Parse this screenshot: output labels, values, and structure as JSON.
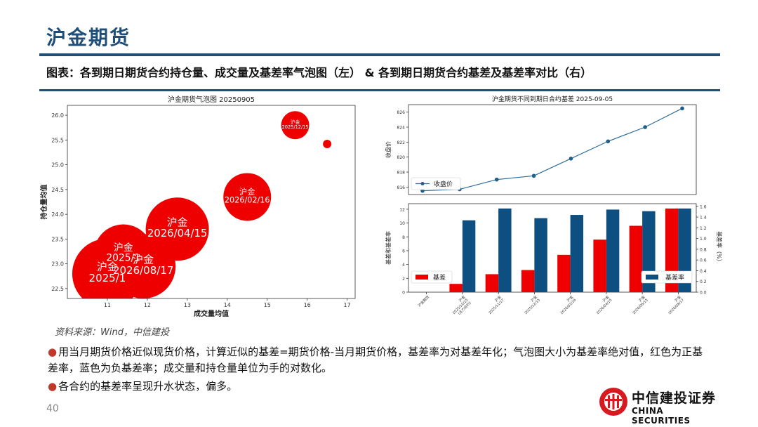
{
  "page": {
    "title": "沪金期货",
    "caption": "图表：各到期日期货合约持仓量、成交量及基差率气泡图（左） & 各到期日期货合约基差及基差率对比（右）",
    "source": "资料来源：Wind，中信建投",
    "bullets": [
      "用当月期货价格近似现货价格，计算近似的基差=期货价格-当月期货价格，基差率为对基差年化；气泡图大小为基差率绝对值，红色为正基差率，蓝色为负基差率；成交量和持仓量单位为手的对数化。",
      "各合约的基差率呈现升水状态，偏多。"
    ],
    "page_number": "40",
    "logo": {
      "cn": "中信建投证券",
      "en": "CHINA SECURITIES"
    }
  },
  "chart_data": [
    {
      "type": "scatter",
      "title": "沪金期货气泡图 20250905",
      "xlabel": "成交量均值",
      "ylabel": "持仓量均值",
      "xlim": [
        10,
        17.2
      ],
      "ylim": [
        22.3,
        26.2
      ],
      "xticks": [
        11,
        12,
        13,
        14,
        15,
        16,
        17
      ],
      "yticks": [
        22.5,
        23.0,
        23.5,
        24.0,
        24.5,
        25.0,
        25.5,
        26.0
      ],
      "bubble_color": "#ee0000",
      "points": [
        {
          "x": 11.0,
          "y": 22.8,
          "r": 50,
          "label": "沪金\n2025/1"
        },
        {
          "x": 11.4,
          "y": 23.2,
          "r": 42,
          "label": "沪金\n2025/1"
        },
        {
          "x": 11.9,
          "y": 22.95,
          "r": 46,
          "label": "沪金\n2026/08/17"
        },
        {
          "x": 12.75,
          "y": 23.7,
          "r": 45,
          "label": "沪金\n2026/04/15"
        },
        {
          "x": 14.5,
          "y": 24.35,
          "r": 34,
          "label": "沪金\n2026/02/16"
        },
        {
          "x": 15.7,
          "y": 25.8,
          "r": 20,
          "label": "沪金\n2025/12/15"
        },
        {
          "x": 16.5,
          "y": 25.42,
          "r": 6,
          "label": ""
        }
      ]
    },
    {
      "type": "line",
      "title": "沪金期货不同到期日合约基差 2025-09-05",
      "ylabel": "收盘价",
      "legend": "收盘价",
      "ylim": [
        815,
        827
      ],
      "yticks": [
        816,
        818,
        820,
        822,
        824,
        826
      ],
      "values": [
        815.5,
        815.7,
        817.0,
        817.5,
        819.8,
        822.1,
        824.0,
        826.5
      ]
    },
    {
      "type": "bar",
      "ylabel": "基差和基差率",
      "y2label": "基差率（%）",
      "ylim": [
        0,
        12.8
      ],
      "y2lim": [
        0,
        1.65
      ],
      "yticks": [
        0,
        2,
        4,
        6,
        8,
        10,
        12
      ],
      "y2ticks": [
        0.0,
        0.2,
        0.4,
        0.6,
        0.8,
        1.0,
        1.2,
        1.4,
        1.6
      ],
      "categories": [
        "沪金期货",
        "沪金\n2025/10/15\n(主力合约)",
        "沪金\n2025/11/17",
        "沪金\n2025/12/15",
        "沪金\n2026/02/16",
        "沪金\n2026/04/15",
        "沪金\n2026/06/15",
        "沪金\n2026/08/17"
      ],
      "series": [
        {
          "name": "基差",
          "color": "#ee0000",
          "axis": "left",
          "values": [
            0.0,
            1.2,
            2.6,
            3.2,
            5.4,
            7.6,
            9.6,
            12.1
          ]
        },
        {
          "name": "基差率",
          "color": "#0d4f80",
          "axis": "right",
          "values": [
            0.0,
            1.34,
            1.56,
            1.38,
            1.44,
            1.54,
            1.51,
            1.56
          ]
        }
      ]
    }
  ]
}
